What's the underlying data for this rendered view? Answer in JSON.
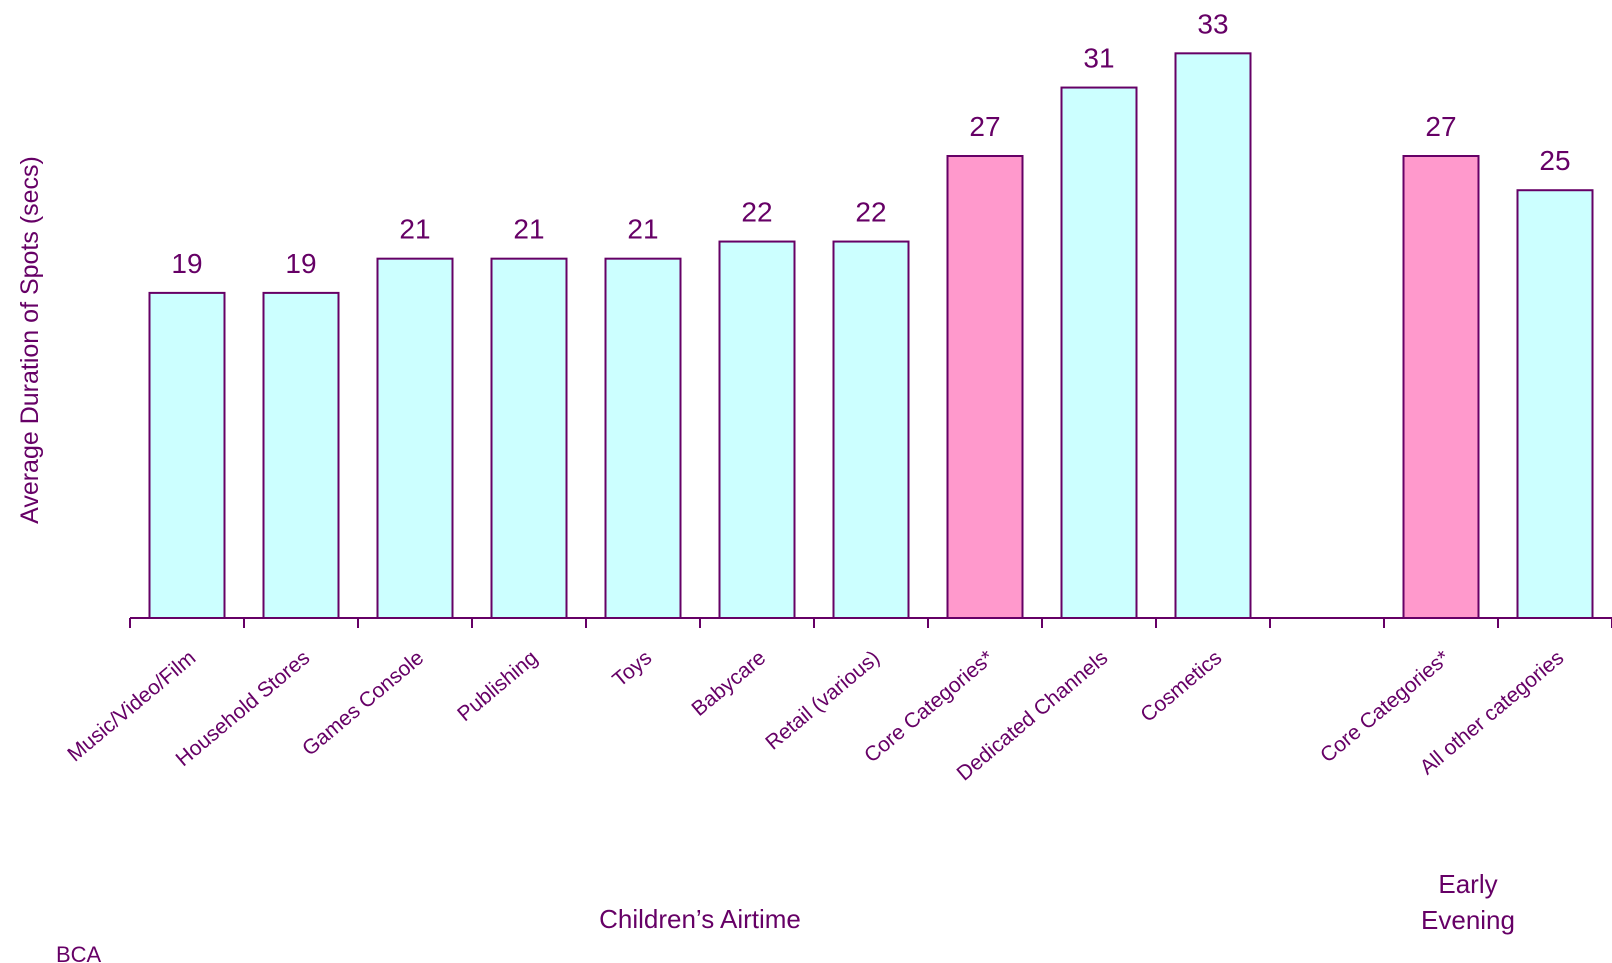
{
  "chart_data": {
    "type": "bar",
    "ylabel": "Average Duration of Spots (secs)",
    "ylim": [
      0,
      36
    ],
    "grid": false,
    "groups": [
      {
        "label": "Children’s Airtime",
        "start": 0,
        "end": 9
      },
      {
        "label": "Early Evening",
        "start": 11,
        "end": 12
      }
    ],
    "bars": [
      {
        "category": "Music/Video/Film",
        "value": 19,
        "highlight": false
      },
      {
        "category": "Household Stores",
        "value": 19,
        "highlight": false
      },
      {
        "category": "Games Console",
        "value": 21,
        "highlight": false
      },
      {
        "category": "Publishing",
        "value": 21,
        "highlight": false
      },
      {
        "category": "Toys",
        "value": 21,
        "highlight": false
      },
      {
        "category": "Babycare",
        "value": 22,
        "highlight": false
      },
      {
        "category": "Retail (various)",
        "value": 22,
        "highlight": false
      },
      {
        "category": "Core Categories*",
        "value": 27,
        "highlight": true
      },
      {
        "category": "Dedicated Channels",
        "value": 31,
        "highlight": false
      },
      {
        "category": "Cosmetics",
        "value": 33,
        "highlight": false
      },
      null,
      {
        "category": "Core Categories*",
        "value": 27,
        "highlight": true
      },
      {
        "category": "All other categories",
        "value": 25,
        "highlight": false
      }
    ],
    "colors": {
      "bar": "#CCFFFF",
      "highlight": "#FF99CC",
      "stroke": "#660066",
      "text": "#660066"
    }
  },
  "footer": {
    "source": "BCA"
  }
}
